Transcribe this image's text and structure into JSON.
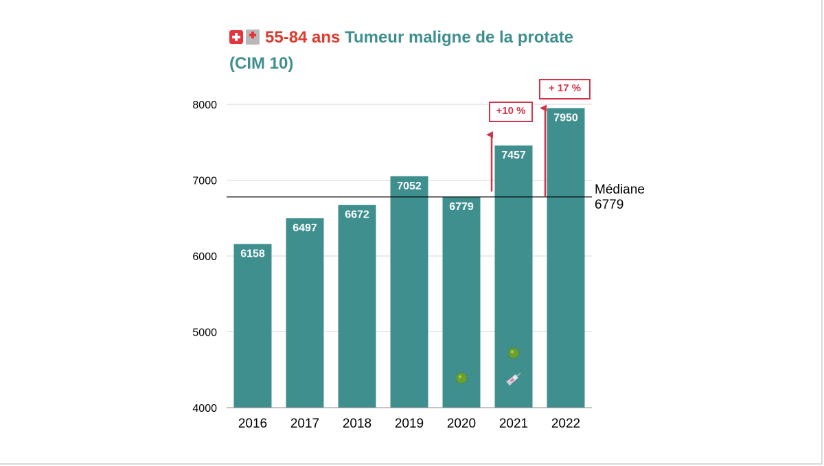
{
  "title": {
    "age_group": "55-84 ans",
    "name": "Tumeur maligne de la protate",
    "classification": "(CIM 10)",
    "flag_icon": "swiss-flag-icon",
    "hospital_icon": "hospital-icon"
  },
  "colors": {
    "bar": "#3f8f8f",
    "accent_red": "#d2354a",
    "title_red": "#e0392b"
  },
  "chart_data": {
    "type": "bar",
    "categories": [
      "2016",
      "2017",
      "2018",
      "2019",
      "2020",
      "2021",
      "2022"
    ],
    "values": [
      6158,
      6497,
      6672,
      7052,
      6779,
      7457,
      7950
    ],
    "data_labels": [
      "6158",
      "6497",
      "6672",
      "7052",
      "6779",
      "7457",
      "7950"
    ],
    "ylim": [
      4000,
      8000
    ],
    "yticks": [
      "4000",
      "5000",
      "6000",
      "7000",
      "8000"
    ],
    "grid": true,
    "reference_line": {
      "label": "Médiane",
      "value_label": "6779",
      "value": 6779
    },
    "annotations": [
      {
        "text": "+10 %",
        "category": "2021",
        "from": 6850,
        "to": 7600
      },
      {
        "text": "+ 17 %",
        "category": "2022",
        "from": 6779,
        "to": 7950
      }
    ],
    "icons": [
      {
        "name": "virus-icon",
        "category": "2020",
        "value": 4390
      },
      {
        "name": "virus-icon",
        "category": "2021",
        "value": 4720
      },
      {
        "name": "syringe-icon",
        "category": "2021",
        "value": 4380
      }
    ]
  }
}
